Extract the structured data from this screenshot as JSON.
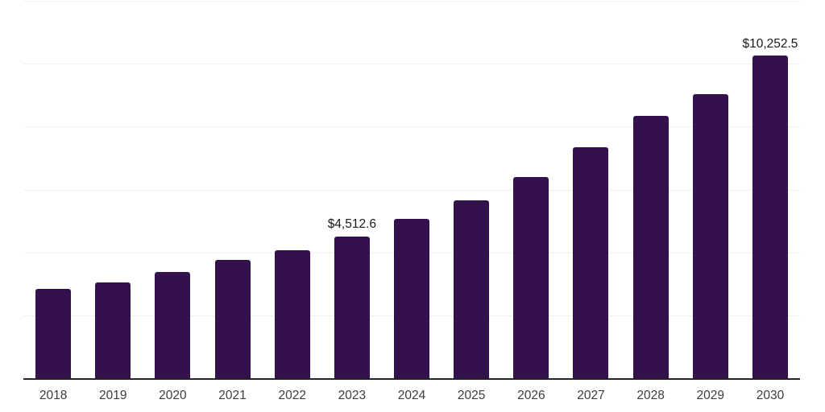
{
  "chart_data": {
    "type": "bar",
    "categories": [
      "2018",
      "2019",
      "2020",
      "2021",
      "2022",
      "2023",
      "2024",
      "2025",
      "2026",
      "2027",
      "2028",
      "2029",
      "2030"
    ],
    "values": [
      2845,
      3050,
      3390,
      3760,
      4075,
      4512.6,
      5065,
      5660,
      6395,
      7335,
      8350,
      9020,
      10252.5
    ],
    "value_labels": [
      "",
      "",
      "",
      "",
      "",
      "$4,512.6",
      "",
      "",
      "",
      "",
      "",
      "",
      "$10,252.5"
    ],
    "title": "",
    "xlabel": "",
    "ylabel": "",
    "ylim": [
      0,
      12000
    ],
    "gridline_values": [
      2000,
      4000,
      6000,
      8000,
      10000,
      12000
    ],
    "grid": "horizontal",
    "legend": "none",
    "colors": {
      "bar": "#33114d",
      "gridline": "#f0f0f0",
      "axis": "#242424",
      "value_label": "#1a1a1a",
      "tick_label": "#3c3c3c",
      "background": "#ffffff"
    }
  }
}
